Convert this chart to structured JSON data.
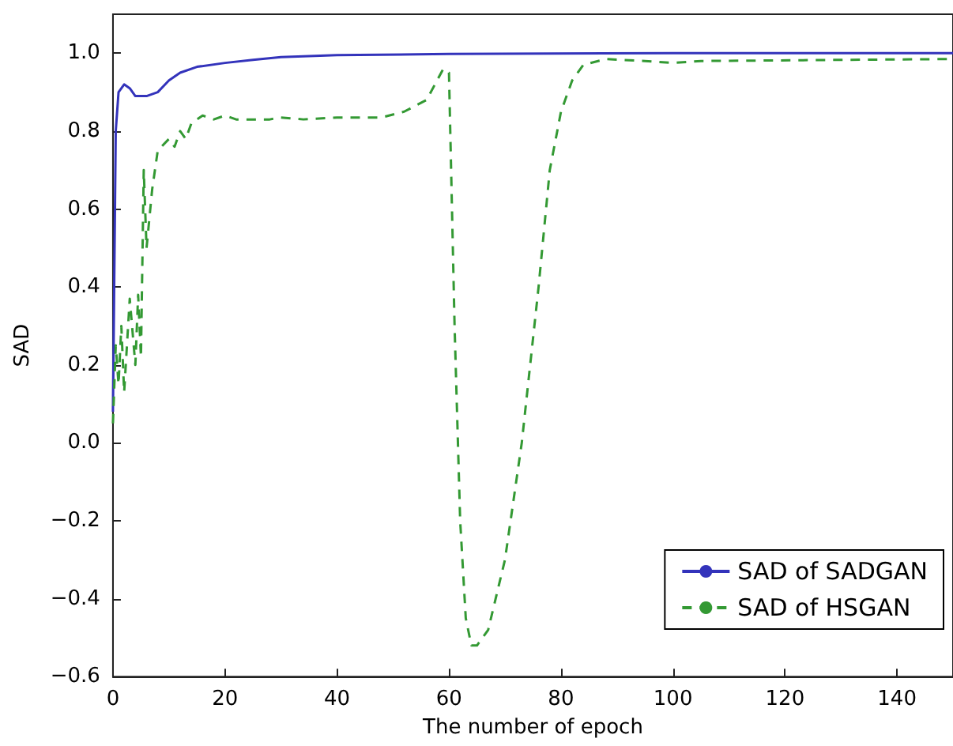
{
  "chart_data": {
    "type": "line",
    "xlabel": "The number of epoch",
    "ylabel": "SAD",
    "xlim": [
      0,
      150
    ],
    "ylim": [
      -0.6,
      1.1
    ],
    "xticks": [
      0,
      20,
      40,
      60,
      80,
      100,
      120,
      140
    ],
    "yticks": [
      -0.6,
      -0.4,
      -0.2,
      {
        "value": 0,
        "label": "0.0"
      },
      0.2,
      0.4,
      0.6,
      0.8,
      {
        "value": 1,
        "label": "1.0"
      }
    ],
    "grid": false,
    "legend": "bottom right",
    "marker": "none",
    "series": [
      {
        "name": "SAD of SADGAN",
        "color": "#3333bb",
        "line_style": "solid",
        "x": [
          0,
          0.5,
          1,
          2,
          3,
          4,
          6,
          8,
          10,
          12,
          15,
          20,
          25,
          30,
          40,
          60,
          100,
          150
        ],
        "values": [
          0.08,
          0.8,
          0.9,
          0.92,
          0.91,
          0.89,
          0.89,
          0.9,
          0.93,
          0.95,
          0.965,
          0.975,
          0.983,
          0.99,
          0.995,
          0.998,
          1.0,
          1.0
        ]
      },
      {
        "name": "SAD of HSGAN",
        "color": "#339933",
        "line_style": "dashed",
        "x": [
          0,
          0.5,
          1,
          1.5,
          2,
          3,
          4,
          4.5,
          5,
          5.5,
          6,
          7,
          8,
          10,
          11,
          12,
          13,
          14,
          16,
          18,
          20,
          22,
          25,
          28,
          30,
          34,
          40,
          48,
          52,
          56,
          59,
          60,
          61,
          62,
          63,
          64,
          65,
          67,
          70,
          73,
          76,
          78,
          80,
          82,
          84,
          88,
          95,
          100,
          105,
          150
        ],
        "values": [
          0.05,
          0.25,
          0.15,
          0.3,
          0.13,
          0.37,
          0.2,
          0.38,
          0.22,
          0.7,
          0.5,
          0.65,
          0.75,
          0.78,
          0.76,
          0.8,
          0.78,
          0.82,
          0.84,
          0.83,
          0.84,
          0.83,
          0.83,
          0.83,
          0.835,
          0.83,
          0.835,
          0.835,
          0.85,
          0.88,
          0.96,
          0.95,
          0.3,
          -0.2,
          -0.45,
          -0.52,
          -0.52,
          -0.48,
          -0.3,
          0.0,
          0.4,
          0.7,
          0.85,
          0.93,
          0.97,
          0.985,
          0.98,
          0.975,
          0.98,
          0.985
        ]
      }
    ]
  }
}
